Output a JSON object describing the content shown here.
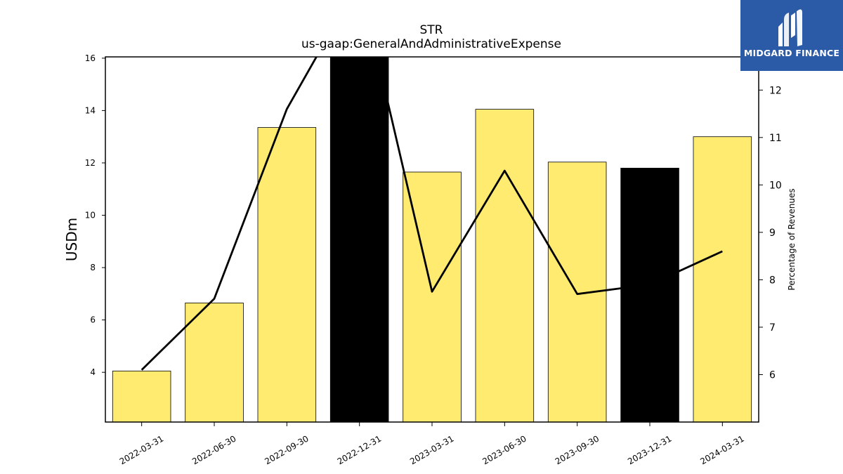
{
  "chart_data": {
    "type": "bar",
    "title": "STR",
    "subtitle": "us-gaap:GeneralAndAdministrativeExpense",
    "ylabel": "USDm",
    "ylabel_right": "Percentage of Revenues",
    "categories": [
      "2022-03-31",
      "2022-06-30",
      "2022-09-30",
      "2022-12-31",
      "2023-03-31",
      "2023-06-30",
      "2023-09-30",
      "2023-12-31",
      "2024-03-31"
    ],
    "bar_values": [
      4.05,
      6.65,
      13.35,
      16.9,
      11.65,
      14.05,
      12.03,
      11.8,
      13.0
    ],
    "bar_colors": [
      "#ffeb70",
      "#ffeb70",
      "#ffeb70",
      "#000000",
      "#ffeb70",
      "#ffeb70",
      "#ffeb70",
      "#000000",
      "#ffeb70"
    ],
    "line_values": [
      6.1,
      7.6,
      11.6,
      14.3,
      7.75,
      10.3,
      7.7,
      7.9,
      8.6
    ],
    "line_color": "#000000",
    "ylim": [
      2.1,
      16.05
    ],
    "yticks": [
      4,
      6,
      8,
      10,
      12,
      14,
      16
    ],
    "ylim_right": [
      5.0,
      12.7
    ],
    "yticks_right": [
      6,
      7,
      8,
      9,
      10,
      11,
      12
    ]
  },
  "logo": {
    "text": "MIDGARD FINANCE",
    "background": "#2b5aa7"
  }
}
